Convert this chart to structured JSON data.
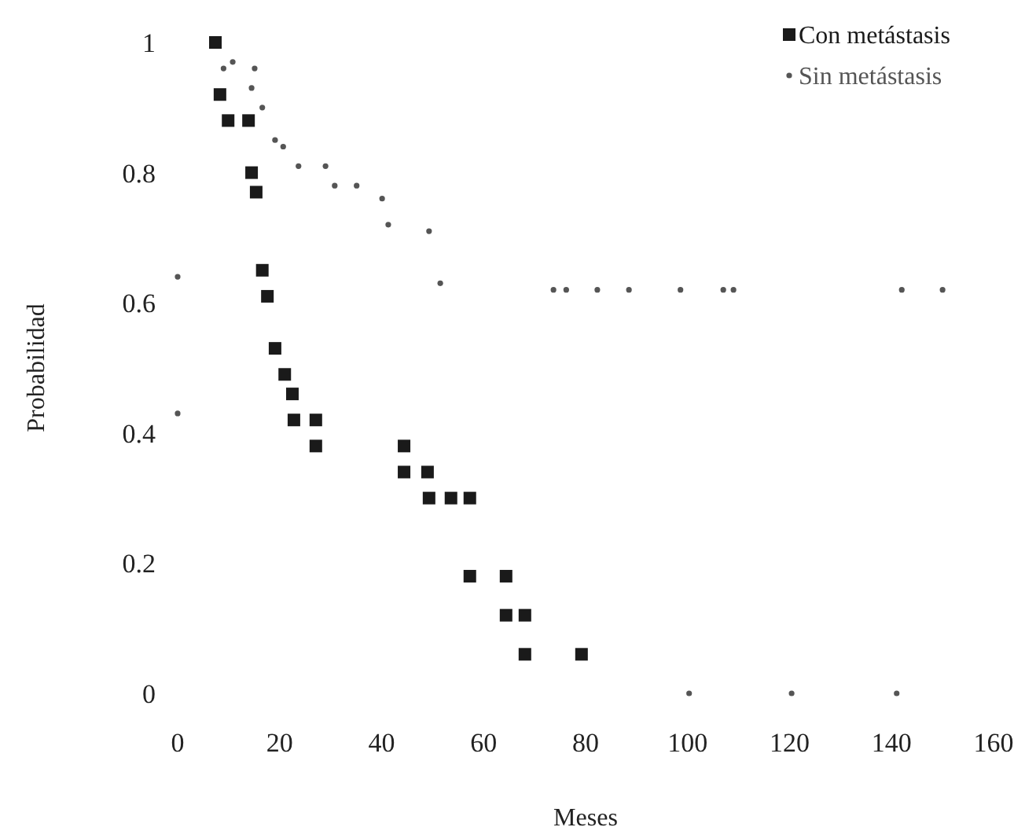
{
  "chart_data": {
    "type": "scatter",
    "xlabel": "Meses",
    "ylabel": "Probabilidad",
    "xlim": [
      0,
      160
    ],
    "ylim": [
      0,
      1
    ],
    "xticks": [
      0,
      20,
      40,
      60,
      80,
      100,
      120,
      140,
      160
    ],
    "yticks": [
      0,
      0.2,
      0.4,
      0.6,
      0.8,
      1
    ],
    "grid": false,
    "legend": "top right",
    "series": [
      {
        "name": "Con metástasis",
        "color": "#1a1a1a",
        "marker": "square",
        "x": [
          7.4,
          8.3,
          9.9,
          13.9,
          14.5,
          15.4,
          16.6,
          17.6,
          19.1,
          21.0,
          22.5,
          22.8,
          27.1,
          27.1,
          44.4,
          44.4,
          49.0,
          49.3,
          53.6,
          57.3,
          57.3,
          64.4,
          64.4,
          68.1,
          68.1,
          79.2
        ],
        "values": [
          1.0,
          0.92,
          0.88,
          0.88,
          0.8,
          0.77,
          0.65,
          0.61,
          0.53,
          0.49,
          0.46,
          0.42,
          0.42,
          0.38,
          0.38,
          0.34,
          0.34,
          0.3,
          0.3,
          0.3,
          0.18,
          0.18,
          0.12,
          0.12,
          0.06,
          0.06
        ]
      },
      {
        "name": "Sin metástasis",
        "color": "#555555",
        "marker": "circle",
        "x": [
          0,
          0,
          9.0,
          10.8,
          14.5,
          15.1,
          16.6,
          19.1,
          20.7,
          23.7,
          29.0,
          30.8,
          35.1,
          40.1,
          41.3,
          49.3,
          51.5,
          73.7,
          76.2,
          82.3,
          88.5,
          98.6,
          107,
          109,
          142,
          150,
          100.3,
          120.4,
          141
        ],
        "values": [
          0.64,
          0.43,
          0.96,
          0.97,
          0.93,
          0.96,
          0.9,
          0.85,
          0.84,
          0.81,
          0.81,
          0.78,
          0.78,
          0.76,
          0.72,
          0.71,
          0.63,
          0.62,
          0.62,
          0.62,
          0.62,
          0.62,
          0.62,
          0.62,
          0.62,
          0.62,
          0,
          0,
          0
        ]
      }
    ]
  }
}
